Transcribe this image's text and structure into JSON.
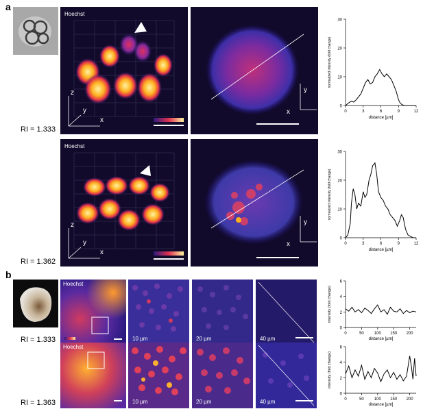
{
  "panels": {
    "a": {
      "letter": "a",
      "rows": [
        {
          "ri": "RI = 1.333",
          "label_3d": "Hoechst",
          "axis_z": "z",
          "axis_y": "y",
          "axis_x": "x",
          "axis_y2": "y",
          "axis_x2": "x"
        },
        {
          "ri": "RI = 1.362",
          "label_3d": "Hoechst",
          "axis_z": "z",
          "axis_y": "y",
          "axis_x": "x",
          "axis_y2": "y",
          "axis_x2": "x"
        }
      ]
    },
    "b": {
      "letter": "b",
      "rows": [
        {
          "ri": "RI = 1.333",
          "label": "Hoechst",
          "depths": [
            "10 µm",
            "20 µm",
            "40 µm"
          ]
        },
        {
          "ri": "RI = 1.363",
          "label": "Hoechst",
          "depths": [
            "10 µm",
            "20 µm",
            "40 µm"
          ]
        }
      ]
    }
  },
  "colors": {
    "background": "#120a2a",
    "line": "#000000"
  },
  "chart_data": [
    {
      "type": "line",
      "ylabel": "normalized intensity (fold change)",
      "xlabel": "distance [µm]",
      "xlim": [
        0,
        12
      ],
      "ylim": [
        0,
        30
      ],
      "xticks": [
        "0",
        "3",
        "6",
        "9",
        "12"
      ],
      "yticks": [
        "0",
        "10",
        "20",
        "30"
      ],
      "x": [
        0,
        0.3,
        0.6,
        1.0,
        1.4,
        1.8,
        2.2,
        2.6,
        3.0,
        3.4,
        3.8,
        4.2,
        4.6,
        5.0,
        5.4,
        5.8,
        6.2,
        6.6,
        7.0,
        7.4,
        7.8,
        8.2,
        8.6,
        9.0,
        9.3,
        9.6,
        10.0,
        10.5,
        11,
        11.5,
        12
      ],
      "values": [
        0,
        0.5,
        1,
        1.5,
        1.2,
        2,
        3,
        4,
        6,
        8,
        9,
        7.5,
        8,
        10,
        11,
        12.5,
        11,
        10,
        11,
        10,
        9,
        7,
        5,
        2,
        0.8,
        0.3,
        0,
        0,
        0,
        0,
        0
      ]
    },
    {
      "type": "line",
      "ylabel": "normalized intensity (fold change)",
      "xlabel": "distance [µm]",
      "xlim": [
        0,
        12
      ],
      "ylim": [
        0,
        30
      ],
      "xticks": [
        "0",
        "3",
        "6",
        "9",
        "12"
      ],
      "yticks": [
        "0",
        "10",
        "20",
        "30"
      ],
      "x": [
        0,
        0.4,
        0.8,
        1.0,
        1.3,
        1.6,
        1.9,
        2.2,
        2.6,
        3.0,
        3.3,
        3.6,
        4.0,
        4.3,
        4.6,
        5.0,
        5.3,
        5.6,
        6.0,
        6.4,
        6.8,
        7.2,
        7.6,
        8.0,
        8.4,
        8.8,
        9.2,
        9.5,
        9.8,
        10.2,
        10.6,
        11,
        11.5,
        12
      ],
      "values": [
        0,
        1,
        5,
        12,
        17,
        15,
        10,
        12,
        11,
        16,
        14,
        15,
        20,
        22,
        25,
        26,
        22,
        16,
        14,
        13,
        11,
        10,
        8,
        7,
        6,
        4,
        6,
        8,
        7,
        3,
        1,
        0.5,
        0,
        0
      ]
    },
    {
      "type": "line",
      "ylabel": "intensity (fold change)",
      "xlabel": "distance [µm]",
      "xlim": [
        0,
        220
      ],
      "ylim": [
        0,
        6
      ],
      "xticks": [
        "0",
        "50",
        "100",
        "150",
        "200"
      ],
      "yticks": [
        "0",
        "2",
        "4",
        "6"
      ],
      "x": [
        0,
        10,
        20,
        30,
        40,
        50,
        60,
        70,
        80,
        90,
        100,
        110,
        120,
        130,
        140,
        150,
        160,
        170,
        180,
        190,
        200,
        210,
        220
      ],
      "values": [
        2.4,
        2.1,
        2.6,
        2.0,
        2.3,
        1.9,
        2.5,
        2.2,
        1.8,
        2.4,
        2.9,
        2.0,
        2.3,
        1.7,
        2.6,
        2.1,
        2.0,
        2.4,
        1.8,
        2.2,
        1.9,
        2.1,
        2.0
      ]
    },
    {
      "type": "line",
      "ylabel": "intensity (fold change)",
      "xlabel": "distance [µm]",
      "xlim": [
        0,
        220
      ],
      "ylim": [
        0,
        6
      ],
      "xticks": [
        "0",
        "50",
        "100",
        "150",
        "200"
      ],
      "yticks": [
        "0",
        "2",
        "4",
        "6"
      ],
      "x": [
        0,
        10,
        20,
        30,
        40,
        50,
        60,
        70,
        80,
        90,
        100,
        110,
        120,
        130,
        140,
        150,
        160,
        170,
        180,
        190,
        200,
        205,
        210,
        215,
        220
      ],
      "values": [
        2.5,
        3.5,
        2.0,
        3.0,
        2.2,
        3.6,
        1.8,
        2.8,
        2.0,
        3.2,
        2.6,
        1.5,
        2.5,
        3.0,
        2.0,
        2.7,
        1.8,
        2.4,
        1.6,
        2.2,
        4.8,
        3.5,
        1.8,
        4.5,
        2.2
      ]
    }
  ]
}
